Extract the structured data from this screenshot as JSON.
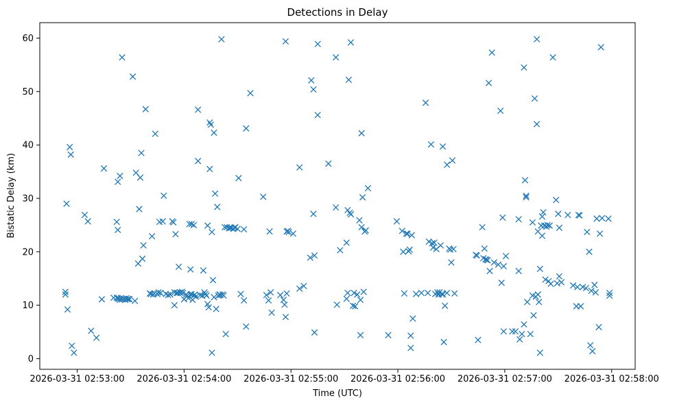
{
  "chart_data": {
    "type": "scatter",
    "title": "Detections in Delay",
    "xlabel": "Time (UTC)",
    "ylabel": "Bistatic Delay (km)",
    "x_unit": "minutes after 2026-03-31 02:53:00",
    "xlim": [
      -0.35,
      5.22
    ],
    "ylim": [
      -2,
      62.9
    ],
    "x_ticks": [
      {
        "value": 0,
        "label": "2026-03-31 02:53:00"
      },
      {
        "value": 1,
        "label": "2026-03-31 02:54:00"
      },
      {
        "value": 2,
        "label": "2026-03-31 02:55:00"
      },
      {
        "value": 3,
        "label": "2026-03-31 02:56:00"
      },
      {
        "value": 4,
        "label": "2026-03-31 02:57:00"
      },
      {
        "value": 5,
        "label": "2026-03-31 02:58:00"
      }
    ],
    "y_ticks": [
      0,
      10,
      20,
      30,
      40,
      50,
      60
    ],
    "grid": false,
    "marker": "x",
    "color": "#1f77b4",
    "series": [
      {
        "name": "Detections",
        "points": [
          [
            -0.11,
            12.5
          ],
          [
            -0.11,
            12.0
          ],
          [
            -0.1,
            29.0
          ],
          [
            -0.09,
            9.2
          ],
          [
            -0.07,
            39.6
          ],
          [
            -0.06,
            38.2
          ],
          [
            -0.05,
            2.4
          ],
          [
            -0.03,
            1.1
          ],
          [
            0.07,
            26.9
          ],
          [
            0.1,
            25.7
          ],
          [
            0.13,
            5.2
          ],
          [
            0.18,
            3.9
          ],
          [
            0.23,
            11.1
          ],
          [
            0.25,
            35.6
          ],
          [
            0.34,
            11.4
          ],
          [
            0.37,
            11.4
          ],
          [
            0.38,
            11.3
          ],
          [
            0.39,
            11.2
          ],
          [
            0.4,
            11.0
          ],
          [
            0.41,
            11.3
          ],
          [
            0.42,
            11.1
          ],
          [
            0.44,
            11.2
          ],
          [
            0.45,
            11.0
          ],
          [
            0.46,
            11.3
          ],
          [
            0.47,
            11.1
          ],
          [
            0.48,
            11.2
          ],
          [
            0.49,
            11.1
          ],
          [
            0.37,
            25.6
          ],
          [
            0.38,
            24.1
          ],
          [
            0.38,
            33.1
          ],
          [
            0.4,
            34.2
          ],
          [
            0.42,
            56.4
          ],
          [
            0.52,
            52.8
          ],
          [
            0.54,
            10.8
          ],
          [
            0.55,
            34.8
          ],
          [
            0.57,
            17.8
          ],
          [
            0.58,
            28.0
          ],
          [
            0.59,
            33.9
          ],
          [
            0.6,
            38.5
          ],
          [
            0.61,
            18.7
          ],
          [
            0.62,
            21.2
          ],
          [
            0.64,
            46.7
          ],
          [
            0.68,
            12.2
          ],
          [
            0.69,
            12.1
          ],
          [
            0.7,
            22.9
          ],
          [
            0.71,
            12.0
          ],
          [
            0.72,
            12.2
          ],
          [
            0.73,
            42.1
          ],
          [
            0.75,
            12.1
          ],
          [
            0.76,
            12.4
          ],
          [
            0.77,
            25.6
          ],
          [
            0.78,
            12.3
          ],
          [
            0.8,
            25.7
          ],
          [
            0.81,
            30.5
          ],
          [
            0.83,
            12.1
          ],
          [
            0.85,
            11.9
          ],
          [
            0.87,
            12.0
          ],
          [
            0.89,
            25.7
          ],
          [
            0.9,
            25.5
          ],
          [
            0.91,
            10.0
          ],
          [
            0.91,
            12.4
          ],
          [
            0.92,
            23.3
          ],
          [
            0.93,
            12.3
          ],
          [
            0.94,
            12.3
          ],
          [
            0.95,
            17.2
          ],
          [
            0.96,
            12.4
          ],
          [
            0.97,
            12.3
          ],
          [
            0.98,
            12.5
          ],
          [
            0.99,
            12.3
          ],
          [
            1.0,
            11.1
          ],
          [
            1.02,
            12.0
          ],
          [
            1.03,
            11.8
          ],
          [
            1.04,
            11.3
          ],
          [
            1.05,
            25.2
          ],
          [
            1.06,
            12.0
          ],
          [
            1.07,
            12.1
          ],
          [
            1.08,
            11.0
          ],
          [
            1.09,
            11.8
          ],
          [
            1.1,
            12.0
          ],
          [
            1.11,
            11.6
          ],
          [
            1.06,
            16.7
          ],
          [
            1.07,
            25.2
          ],
          [
            1.09,
            25.0
          ],
          [
            1.13,
            46.6
          ],
          [
            1.13,
            37.0
          ],
          [
            1.15,
            11.9
          ],
          [
            1.17,
            11.8
          ],
          [
            1.18,
            16.5
          ],
          [
            1.19,
            12.4
          ],
          [
            1.2,
            12.1
          ],
          [
            1.21,
            11.8
          ],
          [
            1.22,
            24.9
          ],
          [
            1.22,
            10.2
          ],
          [
            1.23,
            9.6
          ],
          [
            1.24,
            35.5
          ],
          [
            1.24,
            44.2
          ],
          [
            1.25,
            43.8
          ],
          [
            1.26,
            1.1
          ],
          [
            1.26,
            23.7
          ],
          [
            1.27,
            14.7
          ],
          [
            1.28,
            42.3
          ],
          [
            1.28,
            11.5
          ],
          [
            1.29,
            30.9
          ],
          [
            1.3,
            9.3
          ],
          [
            1.31,
            28.4
          ],
          [
            1.32,
            11.8
          ],
          [
            1.33,
            12.0
          ],
          [
            1.34,
            11.9
          ],
          [
            1.35,
            59.8
          ],
          [
            1.36,
            12.0
          ],
          [
            1.37,
            11.8
          ],
          [
            1.38,
            24.6
          ],
          [
            1.39,
            4.6
          ],
          [
            1.4,
            24.6
          ],
          [
            1.42,
            24.4
          ],
          [
            1.43,
            24.5
          ],
          [
            1.44,
            24.5
          ],
          [
            1.46,
            24.3
          ],
          [
            1.47,
            24.5
          ],
          [
            1.48,
            24.6
          ],
          [
            1.5,
            24.3
          ],
          [
            1.51,
            33.8
          ],
          [
            1.53,
            12.1
          ],
          [
            1.56,
            24.2
          ],
          [
            1.56,
            10.9
          ],
          [
            1.58,
            43.1
          ],
          [
            1.58,
            6.0
          ],
          [
            1.62,
            49.7
          ],
          [
            1.74,
            30.3
          ],
          [
            1.77,
            11.9
          ],
          [
            1.79,
            10.9
          ],
          [
            1.8,
            23.8
          ],
          [
            1.81,
            12.4
          ],
          [
            1.82,
            8.6
          ],
          [
            1.9,
            11.9
          ],
          [
            1.93,
            11.0
          ],
          [
            1.94,
            10.1
          ],
          [
            1.95,
            7.8
          ],
          [
            1.95,
            59.4
          ],
          [
            1.96,
            12.2
          ],
          [
            1.96,
            23.8
          ],
          [
            1.97,
            23.9
          ],
          [
            1.98,
            23.7
          ],
          [
            2.02,
            23.4
          ],
          [
            2.08,
            35.8
          ],
          [
            2.08,
            13.1
          ],
          [
            2.12,
            13.6
          ],
          [
            2.18,
            18.9
          ],
          [
            2.19,
            52.1
          ],
          [
            2.21,
            50.4
          ],
          [
            2.21,
            27.1
          ],
          [
            2.22,
            19.3
          ],
          [
            2.22,
            4.9
          ],
          [
            2.25,
            58.9
          ],
          [
            2.25,
            45.6
          ],
          [
            2.35,
            36.5
          ],
          [
            2.42,
            28.3
          ],
          [
            2.42,
            56.4
          ],
          [
            2.43,
            10.1
          ],
          [
            2.46,
            20.3
          ],
          [
            2.52,
            21.7
          ],
          [
            2.52,
            11.2
          ],
          [
            2.53,
            12.3
          ],
          [
            2.53,
            27.8
          ],
          [
            2.54,
            52.2
          ],
          [
            2.55,
            27.3
          ],
          [
            2.56,
            27.0
          ],
          [
            2.56,
            59.2
          ],
          [
            2.58,
            9.9
          ],
          [
            2.59,
            12.3
          ],
          [
            2.6,
            9.8
          ],
          [
            2.62,
            12.0
          ],
          [
            2.64,
            25.9
          ],
          [
            2.65,
            11.0
          ],
          [
            2.65,
            4.4
          ],
          [
            2.66,
            42.2
          ],
          [
            2.66,
            24.6
          ],
          [
            2.67,
            30.2
          ],
          [
            2.68,
            12.5
          ],
          [
            2.69,
            23.8
          ],
          [
            2.7,
            24.0
          ],
          [
            2.72,
            31.9
          ],
          [
            2.91,
            4.4
          ],
          [
            2.99,
            25.7
          ],
          [
            3.04,
            23.9
          ],
          [
            3.05,
            20.0
          ],
          [
            3.06,
            12.2
          ],
          [
            3.08,
            23.4
          ],
          [
            3.09,
            23.4
          ],
          [
            3.1,
            20.1
          ],
          [
            3.11,
            20.4
          ],
          [
            3.12,
            2.0
          ],
          [
            3.12,
            4.3
          ],
          [
            3.13,
            23.1
          ],
          [
            3.14,
            7.5
          ],
          [
            3.17,
            12.1
          ],
          [
            3.22,
            12.3
          ],
          [
            3.26,
            47.9
          ],
          [
            3.28,
            12.3
          ],
          [
            3.29,
            21.9
          ],
          [
            3.31,
            40.1
          ],
          [
            3.32,
            21.6
          ],
          [
            3.33,
            20.8
          ],
          [
            3.34,
            21.7
          ],
          [
            3.35,
            12.1
          ],
          [
            3.36,
            20.5
          ],
          [
            3.37,
            12.4
          ],
          [
            3.38,
            12.0
          ],
          [
            3.39,
            12.4
          ],
          [
            3.4,
            21.2
          ],
          [
            3.41,
            12.1
          ],
          [
            3.42,
            12.0
          ],
          [
            3.42,
            39.7
          ],
          [
            3.43,
            3.1
          ],
          [
            3.44,
            9.9
          ],
          [
            3.46,
            12.3
          ],
          [
            3.46,
            36.3
          ],
          [
            3.48,
            20.6
          ],
          [
            3.49,
            20.4
          ],
          [
            3.5,
            18.0
          ],
          [
            3.51,
            37.1
          ],
          [
            3.52,
            20.5
          ],
          [
            3.53,
            12.2
          ],
          [
            3.73,
            19.4
          ],
          [
            3.74,
            19.3
          ],
          [
            3.75,
            3.5
          ],
          [
            3.79,
            24.6
          ],
          [
            3.8,
            18.8
          ],
          [
            3.81,
            20.6
          ],
          [
            3.82,
            18.6
          ],
          [
            3.83,
            18.5
          ],
          [
            3.84,
            18.4
          ],
          [
            3.85,
            51.6
          ],
          [
            3.86,
            16.4
          ],
          [
            3.88,
            57.3
          ],
          [
            3.9,
            18.0
          ],
          [
            3.94,
            17.6
          ],
          [
            3.96,
            46.4
          ],
          [
            3.97,
            14.2
          ],
          [
            3.98,
            26.4
          ],
          [
            3.99,
            5.1
          ],
          [
            3.99,
            17.3
          ],
          [
            4.01,
            19.2
          ],
          [
            4.07,
            5.1
          ],
          [
            4.1,
            5.1
          ],
          [
            4.13,
            16.4
          ],
          [
            4.13,
            26.1
          ],
          [
            4.14,
            3.6
          ],
          [
            4.16,
            4.6
          ],
          [
            4.18,
            54.5
          ],
          [
            4.18,
            6.4
          ],
          [
            4.19,
            33.4
          ],
          [
            4.2,
            30.5
          ],
          [
            4.2,
            30.2
          ],
          [
            4.21,
            10.6
          ],
          [
            4.24,
            4.6
          ],
          [
            4.26,
            11.8
          ],
          [
            4.26,
            25.5
          ],
          [
            4.27,
            8.1
          ],
          [
            4.28,
            48.7
          ],
          [
            4.29,
            11.6
          ],
          [
            4.3,
            59.8
          ],
          [
            4.3,
            43.9
          ],
          [
            4.31,
            23.8
          ],
          [
            4.31,
            12.0
          ],
          [
            4.32,
            10.6
          ],
          [
            4.33,
            1.1
          ],
          [
            4.33,
            16.8
          ],
          [
            4.34,
            24.9
          ],
          [
            4.35,
            23.0
          ],
          [
            4.35,
            26.6
          ],
          [
            4.36,
            27.4
          ],
          [
            4.37,
            24.9
          ],
          [
            4.38,
            14.8
          ],
          [
            4.39,
            24.7
          ],
          [
            4.4,
            25.0
          ],
          [
            4.41,
            14.5
          ],
          [
            4.42,
            24.9
          ],
          [
            4.43,
            14.0
          ],
          [
            4.45,
            56.4
          ],
          [
            4.48,
            29.7
          ],
          [
            4.49,
            14.1
          ],
          [
            4.5,
            27.1
          ],
          [
            4.51,
            15.4
          ],
          [
            4.51,
            24.5
          ],
          [
            4.53,
            14.3
          ],
          [
            4.59,
            26.9
          ],
          [
            4.64,
            13.7
          ],
          [
            4.67,
            9.8
          ],
          [
            4.68,
            13.4
          ],
          [
            4.69,
            26.9
          ],
          [
            4.7,
            26.8
          ],
          [
            4.71,
            9.8
          ],
          [
            4.73,
            13.4
          ],
          [
            4.76,
            13.2
          ],
          [
            4.77,
            23.7
          ],
          [
            4.79,
            20.0
          ],
          [
            4.8,
            2.5
          ],
          [
            4.81,
            12.7
          ],
          [
            4.82,
            1.4
          ],
          [
            4.84,
            13.8
          ],
          [
            4.85,
            12.4
          ],
          [
            4.86,
            26.2
          ],
          [
            4.88,
            5.9
          ],
          [
            4.89,
            23.4
          ],
          [
            4.9,
            58.3
          ],
          [
            4.91,
            26.3
          ],
          [
            4.97,
            26.2
          ],
          [
            4.98,
            11.8
          ],
          [
            4.98,
            12.3
          ]
        ]
      }
    ]
  }
}
